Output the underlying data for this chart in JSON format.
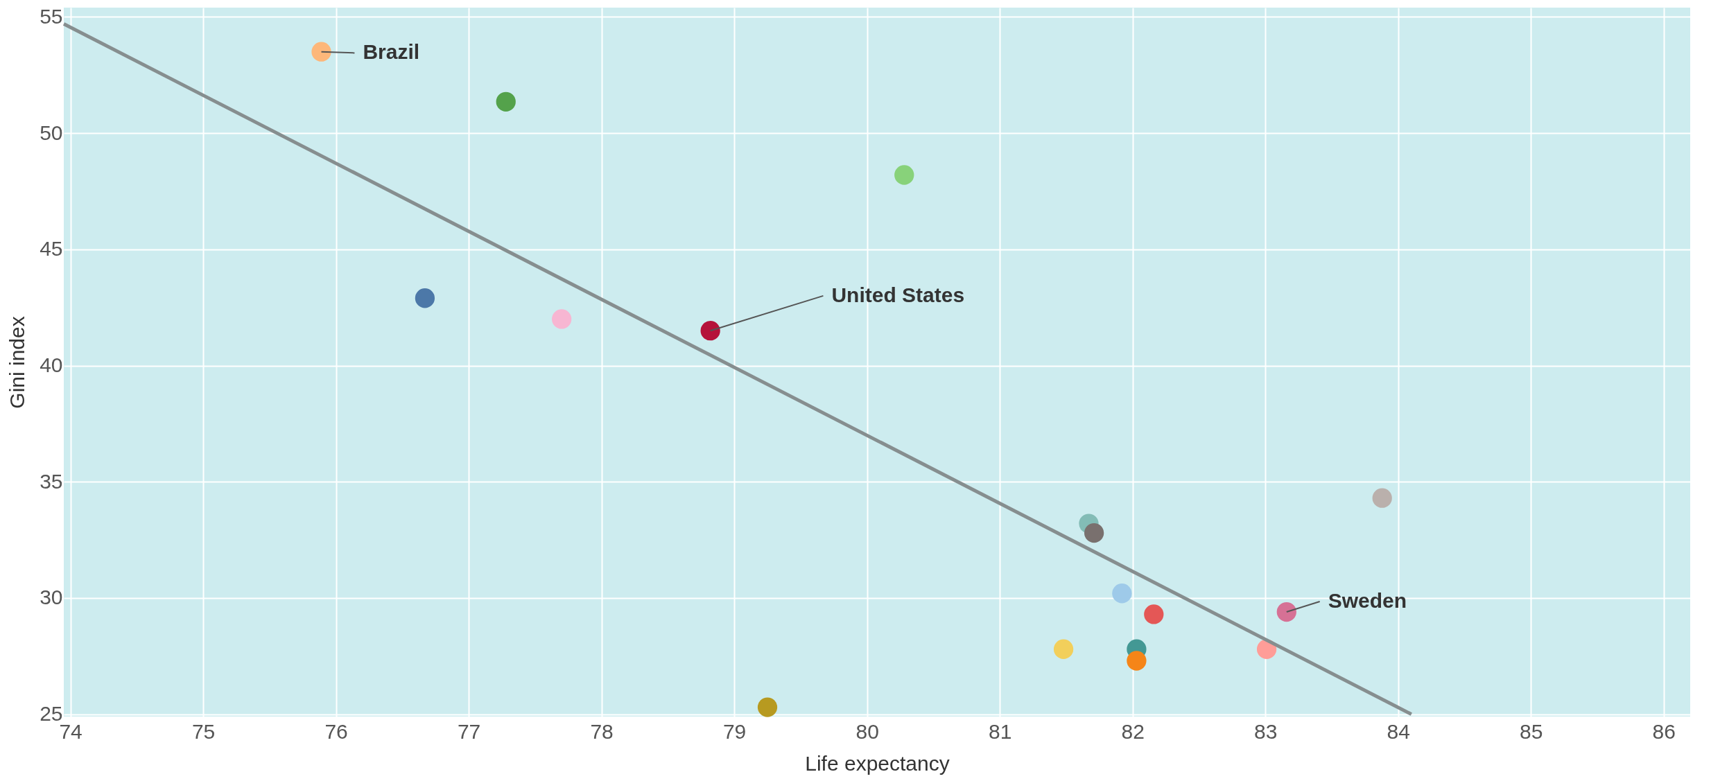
{
  "chart_data": {
    "type": "scatter",
    "xlabel": "Life expectancy",
    "ylabel": "Gini index",
    "xlim": [
      73.95,
      86.2
    ],
    "ylim": [
      24.9,
      55.4
    ],
    "xticks": [
      74,
      75,
      76,
      77,
      78,
      79,
      80,
      81,
      82,
      83,
      84,
      85,
      86
    ],
    "yticks": [
      25,
      30,
      35,
      40,
      45,
      50,
      55
    ],
    "grid": true,
    "series": [
      {
        "marker": "circle",
        "x": [
          75.89,
          77.28,
          80.28,
          76.67,
          77.7,
          78.82,
          81.67,
          81.71,
          83.88,
          81.92,
          82.16,
          83.16,
          81.48,
          82.03,
          82.03,
          83.01,
          79.25
        ],
        "values": [
          53.5,
          51.35,
          48.2,
          42.9,
          42.0,
          41.5,
          33.2,
          32.8,
          34.3,
          30.2,
          29.3,
          29.4,
          27.8,
          27.8,
          27.3,
          27.8,
          25.3
        ],
        "colors": [
          "#fdb77a",
          "#54a24b",
          "#88d27a",
          "#4c78a8",
          "#f7b6d2",
          "#b5123a",
          "#83bcb6",
          "#79706e",
          "#bab0ac",
          "#9ecae9",
          "#e45756",
          "#d67195",
          "#f2cf5b",
          "#439894",
          "#f58518",
          "#ff9d98",
          "#b79a20"
        ]
      },
      {
        "type": "line",
        "color": "#868e8f",
        "x": [
          73.95,
          84.1
        ],
        "values": [
          54.7,
          25.0
        ]
      }
    ],
    "annotations": [
      {
        "text": "Brazil",
        "x": 75.89,
        "y": 53.5
      },
      {
        "text": "United States",
        "x": 78.82,
        "y": 41.5
      },
      {
        "text": "Sweden",
        "x": 83.16,
        "y": 29.4
      }
    ]
  }
}
